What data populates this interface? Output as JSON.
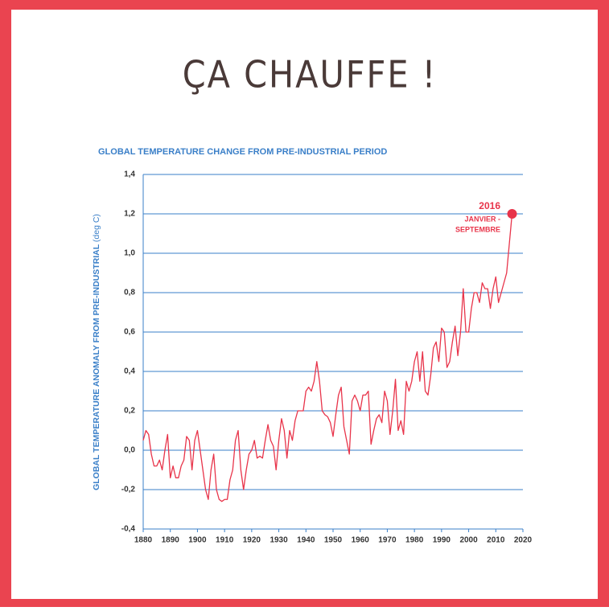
{
  "chart_data": {
    "type": "line",
    "heading": "ÇA CHAUFFE !",
    "title": "GLOBAL TEMPERATURE CHANGE FROM PRE-INDUSTRIAL PERIOD",
    "y_label": "GLOBAL TEMPERATURE ANOMALY FROM PRE-INDUSTRIAL",
    "y_label_unit": "(deg C)",
    "annotation": {
      "title": "2016",
      "lines": [
        "JANVIER -",
        "SEPTEMBRE"
      ]
    },
    "x": [
      1880,
      1881,
      1882,
      1883,
      1884,
      1885,
      1886,
      1887,
      1888,
      1889,
      1890,
      1891,
      1892,
      1893,
      1894,
      1895,
      1896,
      1897,
      1898,
      1899,
      1900,
      1901,
      1902,
      1903,
      1904,
      1905,
      1906,
      1907,
      1908,
      1909,
      1910,
      1911,
      1912,
      1913,
      1914,
      1915,
      1916,
      1917,
      1918,
      1919,
      1920,
      1921,
      1922,
      1923,
      1924,
      1925,
      1926,
      1927,
      1928,
      1929,
      1930,
      1931,
      1932,
      1933,
      1934,
      1935,
      1936,
      1937,
      1938,
      1939,
      1940,
      1941,
      1942,
      1943,
      1944,
      1945,
      1946,
      1947,
      1948,
      1949,
      1950,
      1951,
      1952,
      1953,
      1954,
      1955,
      1956,
      1957,
      1958,
      1959,
      1960,
      1961,
      1962,
      1963,
      1964,
      1965,
      1966,
      1967,
      1968,
      1969,
      1970,
      1971,
      1972,
      1973,
      1974,
      1975,
      1976,
      1977,
      1978,
      1979,
      1980,
      1981,
      1982,
      1983,
      1984,
      1985,
      1986,
      1987,
      1988,
      1989,
      1990,
      1991,
      1992,
      1993,
      1994,
      1995,
      1996,
      1997,
      1998,
      1999,
      2000,
      2001,
      2002,
      2003,
      2004,
      2005,
      2006,
      2007,
      2008,
      2009,
      2010,
      2011,
      2012,
      2013,
      2014,
      2015,
      2016
    ],
    "series": [
      {
        "color": "#e8344a",
        "values": [
          0.05,
          0.1,
          0.08,
          -0.02,
          -0.08,
          -0.08,
          -0.05,
          -0.1,
          0.0,
          0.08,
          -0.14,
          -0.08,
          -0.14,
          -0.14,
          -0.08,
          -0.05,
          0.07,
          0.05,
          -0.1,
          0.05,
          0.1,
          0.0,
          -0.1,
          -0.2,
          -0.25,
          -0.1,
          -0.02,
          -0.2,
          -0.25,
          -0.26,
          -0.25,
          -0.25,
          -0.15,
          -0.1,
          0.05,
          0.1,
          -0.1,
          -0.2,
          -0.1,
          -0.02,
          0.0,
          0.05,
          -0.04,
          -0.03,
          -0.04,
          0.05,
          0.13,
          0.05,
          0.02,
          -0.1,
          0.05,
          0.16,
          0.1,
          -0.04,
          0.1,
          0.05,
          0.15,
          0.2,
          0.2,
          0.2,
          0.3,
          0.32,
          0.3,
          0.35,
          0.45,
          0.35,
          0.2,
          0.18,
          0.17,
          0.14,
          0.07,
          0.18,
          0.28,
          0.32,
          0.12,
          0.05,
          -0.02,
          0.25,
          0.28,
          0.25,
          0.2,
          0.28,
          0.28,
          0.3,
          0.03,
          0.1,
          0.16,
          0.18,
          0.14,
          0.3,
          0.25,
          0.08,
          0.2,
          0.36,
          0.1,
          0.15,
          0.08,
          0.35,
          0.3,
          0.35,
          0.45,
          0.5,
          0.35,
          0.5,
          0.3,
          0.28,
          0.38,
          0.52,
          0.55,
          0.45,
          0.62,
          0.6,
          0.42,
          0.45,
          0.55,
          0.63,
          0.48,
          0.6,
          0.82,
          0.6,
          0.6,
          0.72,
          0.8,
          0.8,
          0.75,
          0.85,
          0.82,
          0.82,
          0.72,
          0.82,
          0.88,
          0.75,
          0.8,
          0.85,
          0.9,
          1.05,
          1.2
        ]
      }
    ],
    "xlim": [
      1880,
      2020
    ],
    "xticks": [
      1880,
      1890,
      1900,
      1910,
      1920,
      1930,
      1940,
      1950,
      1960,
      1970,
      1980,
      1990,
      2000,
      2010,
      2020
    ],
    "ylim": [
      -0.4,
      1.4
    ],
    "yticks": [
      {
        "value": 1.4,
        "label": "1,4"
      },
      {
        "value": 1.2,
        "label": "1,2"
      },
      {
        "value": 1.0,
        "label": "1,0"
      },
      {
        "value": 0.8,
        "label": "0,8"
      },
      {
        "value": 0.6,
        "label": "0,6"
      },
      {
        "value": 0.4,
        "label": "0,4"
      },
      {
        "value": 0.2,
        "label": "0,2"
      },
      {
        "value": 0,
        "label": "0,0"
      },
      {
        "value": -0.2,
        "label": "-0,2"
      },
      {
        "value": -0.4,
        "label": "-0,4"
      }
    ],
    "grid": true,
    "grid_color": "#3a7fc8"
  }
}
